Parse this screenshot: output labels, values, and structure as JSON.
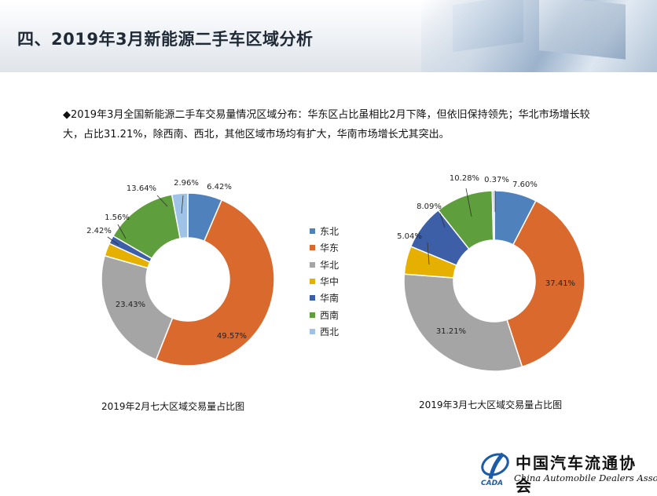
{
  "page": {
    "title": "四、2019年3月新能源二手车区域分析",
    "description": "◆2019年3月全国新能源二手车交易量情况区域分布：华东区占比虽相比2月下降，但依旧保持领先；华北市场增长较大，占比31.21%，除西南、西北，其他区域市场均有扩大，华南市场增长尤其突出。"
  },
  "logo": {
    "name_cn": "中国汽车流通协会",
    "name_en": "China Automobile Dealers Association",
    "abbr": "CADA"
  },
  "legend": [
    {
      "label": "东北",
      "color": "#4f81bd"
    },
    {
      "label": "华东",
      "color": "#d9692d"
    },
    {
      "label": "华北",
      "color": "#a5a5a5"
    },
    {
      "label": "华中",
      "color": "#e6b000"
    },
    {
      "label": "华南",
      "color": "#3d5fa8"
    },
    {
      "label": "西南",
      "color": "#5e9e3c"
    },
    {
      "label": "西北",
      "color": "#9fc3e6"
    }
  ],
  "chart_data": [
    {
      "type": "pie",
      "title": "2019年2月七大区域交易量占比图",
      "categories": [
        "东北",
        "华东",
        "华北",
        "华中",
        "华南",
        "西南",
        "西北"
      ],
      "values": [
        6.42,
        49.57,
        23.43,
        2.42,
        1.56,
        13.64,
        2.96
      ],
      "labels": [
        "6.42%",
        "49.57%",
        "23.43%",
        "2.42%",
        "1.56%",
        "13.64%",
        "2.96%"
      ]
    },
    {
      "type": "pie",
      "title": "2019年3月七大区域交易量占比图",
      "categories": [
        "东北",
        "华东",
        "华北",
        "华中",
        "华南",
        "西南",
        "西北"
      ],
      "values": [
        7.6,
        37.41,
        31.21,
        5.04,
        8.09,
        10.28,
        0.37
      ],
      "labels": [
        "7.60%",
        "37.41%",
        "31.21%",
        "5.04%",
        "8.09%",
        "10.28%",
        "0.37%"
      ]
    }
  ]
}
